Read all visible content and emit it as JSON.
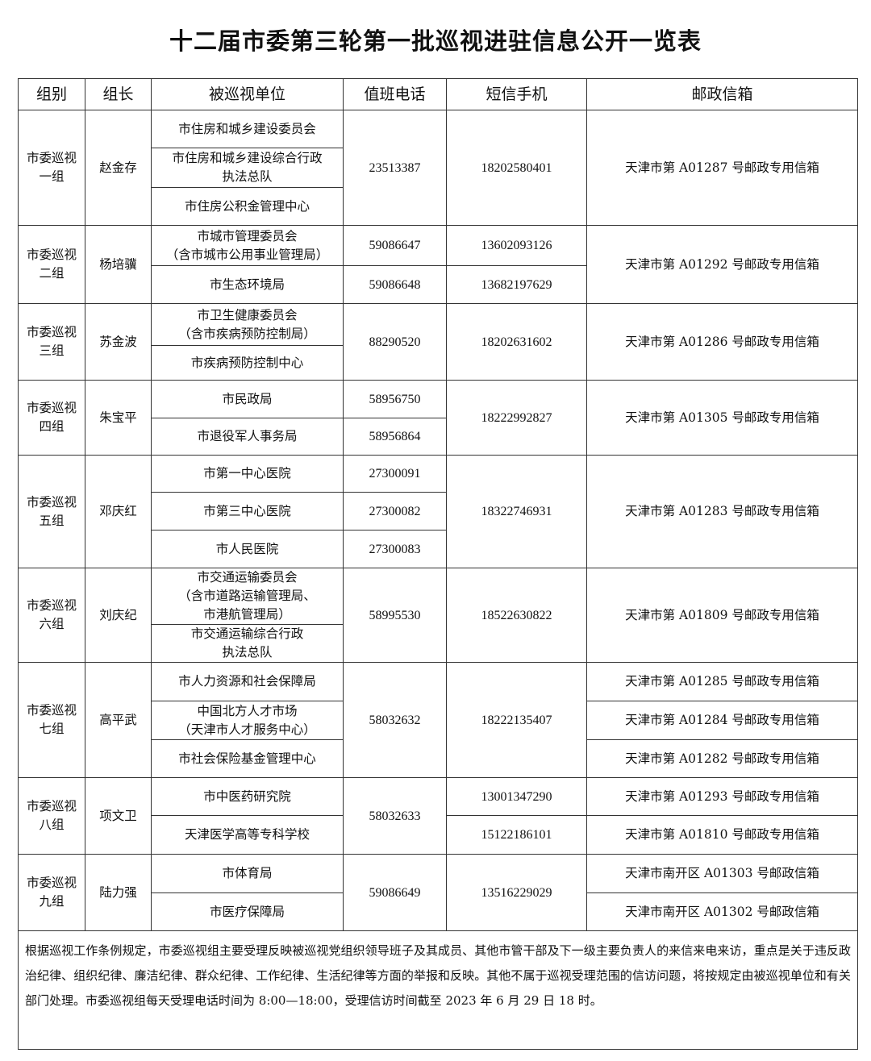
{
  "title": "十二届市委第三轮第一批巡视进驻信息公开一览表",
  "headers": [
    "组别",
    "组长",
    "被巡视单位",
    "值班电话",
    "短信手机",
    "邮政信箱"
  ],
  "groups": [
    {
      "name": "市委巡视\n一组",
      "leader": "赵金存",
      "units": [
        "市住房和城乡建设委员会",
        "市住房和城乡建设综合行政\n执法总队",
        "市住房公积金管理中心"
      ],
      "phones": [
        "23513387"
      ],
      "mobiles": [
        "18202580401"
      ],
      "mailboxes": [
        "天津市第 A01287 号邮政专用信箱"
      ]
    },
    {
      "name": "市委巡视\n二组",
      "leader": "杨培骥",
      "units": [
        "市城市管理委员会\n（含市城市公用事业管理局）",
        "市生态环境局"
      ],
      "phones": [
        "59086647",
        "59086648"
      ],
      "mobiles": [
        "13602093126",
        "13682197629"
      ],
      "mailboxes": [
        "天津市第 A01292 号邮政专用信箱"
      ]
    },
    {
      "name": "市委巡视\n三组",
      "leader": "苏金波",
      "units": [
        "市卫生健康委员会\n（含市疾病预防控制局）",
        "市疾病预防控制中心"
      ],
      "phones": [
        "88290520"
      ],
      "mobiles": [
        "18202631602"
      ],
      "mailboxes": [
        "天津市第 A01286 号邮政专用信箱"
      ]
    },
    {
      "name": "市委巡视\n四组",
      "leader": "朱宝平",
      "units": [
        "市民政局",
        "市退役军人事务局"
      ],
      "phones": [
        "58956750",
        "58956864"
      ],
      "mobiles": [
        "18222992827"
      ],
      "mailboxes": [
        "天津市第 A01305 号邮政专用信箱"
      ]
    },
    {
      "name": "市委巡视\n五组",
      "leader": "邓庆红",
      "units": [
        "市第一中心医院",
        "市第三中心医院",
        "市人民医院"
      ],
      "phones": [
        "27300091",
        "27300082",
        "27300083"
      ],
      "mobiles": [
        "18322746931"
      ],
      "mailboxes": [
        "天津市第 A01283 号邮政专用信箱"
      ]
    },
    {
      "name": "市委巡视\n六组",
      "leader": "刘庆纪",
      "units": [
        "市交通运输委员会\n（含市道路运输管理局、\n市港航管理局）",
        "市交通运输综合行政\n执法总队"
      ],
      "phones": [
        "58995530"
      ],
      "mobiles": [
        "18522630822"
      ],
      "mailboxes": [
        "天津市第 A01809 号邮政专用信箱"
      ]
    },
    {
      "name": "市委巡视\n七组",
      "leader": "高平武",
      "units": [
        "市人力资源和社会保障局",
        "中国北方人才市场\n（天津市人才服务中心）",
        "市社会保险基金管理中心"
      ],
      "phones": [
        "58032632"
      ],
      "mobiles": [
        "18222135407"
      ],
      "mailboxes": [
        "天津市第 A01285 号邮政专用信箱",
        "天津市第 A01284 号邮政专用信箱",
        "天津市第 A01282 号邮政专用信箱"
      ]
    },
    {
      "name": "市委巡视\n八组",
      "leader": "项文卫",
      "units": [
        "市中医药研究院",
        "天津医学高等专科学校"
      ],
      "phones": [
        "58032633"
      ],
      "mobiles": [
        "13001347290",
        "15122186101"
      ],
      "mailboxes": [
        "天津市第 A01293 号邮政专用信箱",
        "天津市第 A01810 号邮政专用信箱"
      ]
    },
    {
      "name": "市委巡视\n九组",
      "leader": "陆力强",
      "units": [
        "市体育局",
        "市医疗保障局"
      ],
      "phones": [
        "59086649"
      ],
      "mobiles": [
        "13516229029"
      ],
      "mailboxes": [
        "天津市南开区 A01303 号邮政信箱",
        "天津市南开区 A01302 号邮政信箱"
      ]
    }
  ],
  "note": "根据巡视工作条例规定，市委巡视组主要受理反映被巡视党组织领导班子及其成员、其他市管干部及下一级主要负责人的来信来电来访，重点是关于违反政治纪律、组织纪律、廉洁纪律、群众纪律、工作纪律、生活纪律等方面的举报和反映。其他不属于巡视受理范围的信访问题，将按规定由被巡视单位和有关部门处理。市委巡视组每天受理电话时间为 8:00—18:00，受理信访时间截至 2023 年 6 月 29 日 18 时。"
}
